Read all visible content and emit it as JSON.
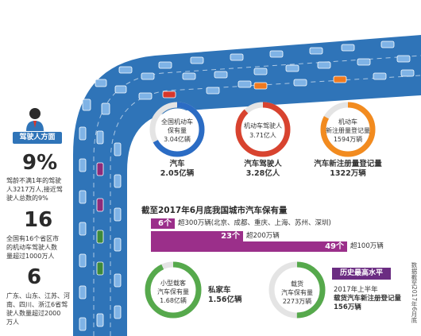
{
  "colors": {
    "road": "#2f74b8",
    "car_blue": "#7fb3e6",
    "car_red": "#d8372b",
    "car_orange": "#f07a1f",
    "car_purple": "#8e2b7a",
    "car_green": "#3d8a3b",
    "ring_blue": "#2b6cc4",
    "ring_red": "#d8432f",
    "ring_orange": "#f28b1f",
    "bar_purple": "#9b2f8a",
    "ring_green": "#56a94c",
    "badge_purple": "#6b2d82"
  },
  "driver_section": {
    "badge": "驾驶人方面",
    "icon": "person-icon",
    "stat1": {
      "value": "9%",
      "desc": [
        "驾龄不满1年的驾驶",
        "人3217万人,接近驾",
        "驶人总数的9%"
      ]
    },
    "stat2": {
      "value": "16",
      "desc": [
        "全国有16个省区市",
        "的机动车驾驶人数",
        "量超过1000万人"
      ]
    },
    "stat3": {
      "value": "6",
      "desc": [
        "广东、山东、江苏、河",
        "南、四川、浙江6省驾",
        "驶人数量超过2000",
        "万人"
      ]
    }
  },
  "rings_top": [
    {
      "inner": [
        "全国机动车",
        "保有量",
        "3.04亿辆"
      ],
      "label": "汽车",
      "value": "2.05亿辆",
      "fill": 0.67
    },
    {
      "inner": [
        "机动车驾驶人",
        "3.71亿人"
      ],
      "label": "汽车驾驶人",
      "value": "3.28亿人",
      "fill": 0.88
    },
    {
      "inner": [
        "机动车",
        "新注册量登记量",
        "1594万辆"
      ],
      "label": "汽车新注册量登记量",
      "value": "1322万辆",
      "fill": 0.83
    }
  ],
  "cities": {
    "title": "截至2017年6月底我国城市汽车保有量",
    "bars": [
      {
        "count": "6个",
        "label": "超300万辆(北京、成都、重庆、上海、苏州、深圳)",
        "share": 0.12
      },
      {
        "count": "23个",
        "label": "超200万辆",
        "share": 0.47
      },
      {
        "count": "49个",
        "label": "超100万辆",
        "share": 1.0
      }
    ]
  },
  "rings_bottom": [
    {
      "inner": [
        "小型载客",
        "汽车保有量",
        "1.68亿辆"
      ],
      "label": "私家车",
      "value": "1.56亿辆",
      "fill": 0.93
    },
    {
      "inner": [
        "载货",
        "汽车保有量",
        "2273万辆"
      ],
      "label": "",
      "value": "",
      "fill": 0.5
    }
  ],
  "record": {
    "badge": "历史最高水平",
    "lines": [
      "2017年上半年",
      "载货汽车新注册登记量",
      "156万辆"
    ]
  },
  "source": "数据截至2017年6月底"
}
